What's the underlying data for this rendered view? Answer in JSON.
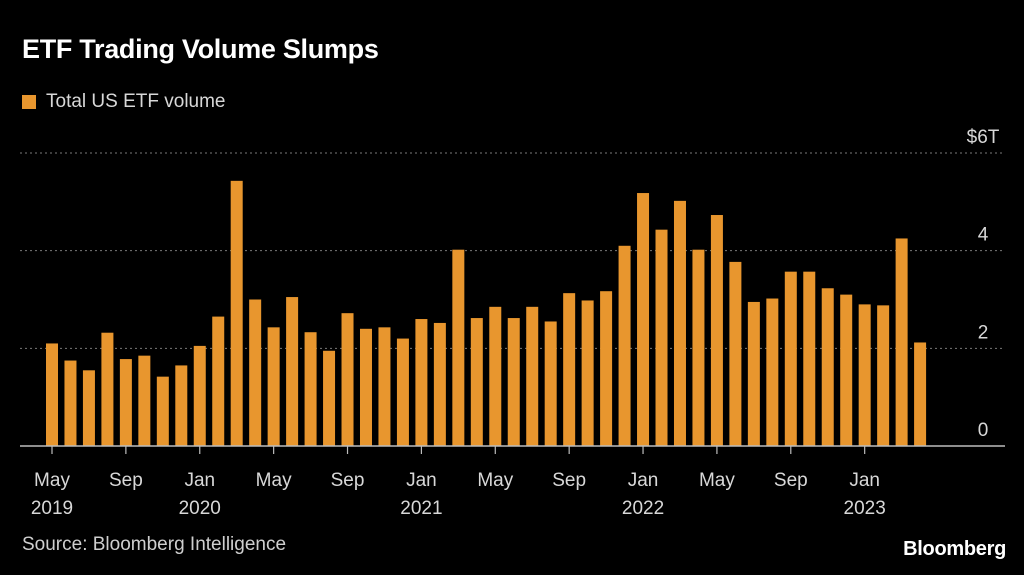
{
  "title": "ETF Trading Volume Slumps",
  "legend_label": "Total US ETF volume",
  "source": "Source: Bloomberg Intelligence",
  "brand": "Bloomberg",
  "colors": {
    "bar": "#e8962e",
    "grid": "#7a7a7a",
    "axis": "#bdbdbd",
    "text": "#d8d8d8"
  },
  "chart_data": {
    "type": "bar",
    "title": "ETF Trading Volume Slumps",
    "series": [
      {
        "name": "Total US ETF volume",
        "values": [
          2.1,
          1.75,
          1.55,
          2.32,
          1.78,
          1.85,
          1.42,
          1.65,
          2.05,
          2.65,
          5.43,
          3.0,
          2.43,
          3.05,
          2.33,
          1.95,
          2.72,
          2.4,
          2.43,
          2.2,
          2.6,
          2.52,
          4.02,
          2.62,
          2.85,
          2.62,
          2.85,
          2.55,
          3.13,
          2.98,
          3.17,
          4.1,
          5.18,
          4.43,
          5.02,
          4.02,
          4.73,
          3.77,
          2.95,
          3.02,
          3.57,
          3.57,
          3.23,
          3.1,
          2.9,
          2.88,
          4.25,
          2.12
        ]
      }
    ],
    "x_tick_labels": [
      {
        "index": 0,
        "month": "May",
        "year": "2019"
      },
      {
        "index": 4,
        "month": "Sep",
        "year": ""
      },
      {
        "index": 8,
        "month": "Jan",
        "year": "2020"
      },
      {
        "index": 12,
        "month": "May",
        "year": ""
      },
      {
        "index": 16,
        "month": "Sep",
        "year": ""
      },
      {
        "index": 20,
        "month": "Jan",
        "year": "2021"
      },
      {
        "index": 24,
        "month": "May",
        "year": ""
      },
      {
        "index": 28,
        "month": "Sep",
        "year": ""
      },
      {
        "index": 32,
        "month": "Jan",
        "year": "2022"
      },
      {
        "index": 36,
        "month": "May",
        "year": ""
      },
      {
        "index": 40,
        "month": "Sep",
        "year": ""
      },
      {
        "index": 44,
        "month": "Jan",
        "year": "2023"
      }
    ],
    "y_ticks": [
      {
        "value": 0,
        "label": "0"
      },
      {
        "value": 2,
        "label": "2"
      },
      {
        "value": 4,
        "label": "4"
      },
      {
        "value": 6,
        "label": "$6T"
      }
    ],
    "ylim": [
      0,
      6
    ],
    "ylabel": "",
    "xlabel": "",
    "grid": true,
    "legend_position": "top-left"
  }
}
